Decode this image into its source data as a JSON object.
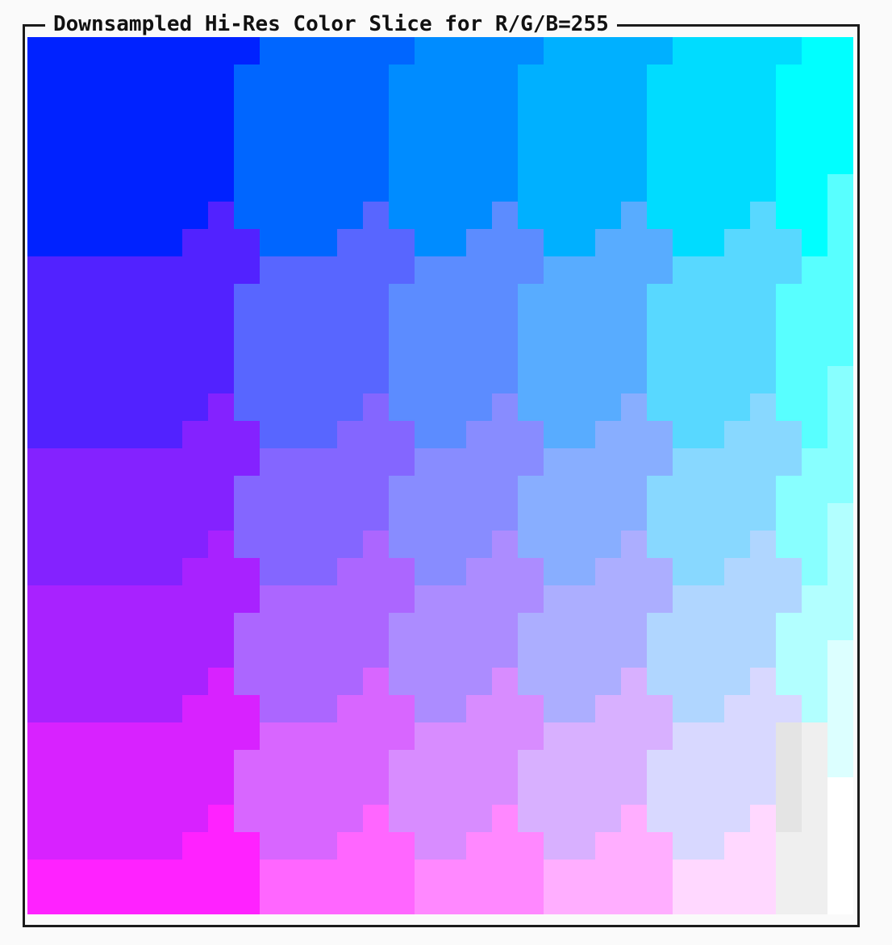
{
  "title": "Downsampled Hi-Res Color Slice for R/G/B=255",
  "palette": {
    "r0": [
      "#0022ff",
      "#0066ff",
      "#008cff",
      "#00b0ff",
      "#00dcff",
      "#00ffff"
    ],
    "r1": [
      "#5222ff",
      "#5866ff",
      "#5c8cff",
      "#58acff",
      "#58d8ff",
      "#58ffff"
    ],
    "r2": [
      "#8422ff",
      "#8466ff",
      "#888cff",
      "#88aeff",
      "#88d8ff",
      "#88ffff"
    ],
    "r3": [
      "#a822ff",
      "#ac66ff",
      "#ac8cff",
      "#acaeff",
      "#b0d6ff",
      "#b2ffff"
    ],
    "r4": [
      "#d822ff",
      "#d866ff",
      "#d88cff",
      "#d8b0ff",
      "#d8d8ff",
      "#dcffff"
    ],
    "r5": [
      "#ff22ff",
      "#ff66ff",
      "#ff88ff",
      "#ffaeff",
      "#ffd8ff",
      "#ffffff"
    ],
    "gray_light": "#efefef",
    "gray_mid": "#e4e4e4"
  }
}
